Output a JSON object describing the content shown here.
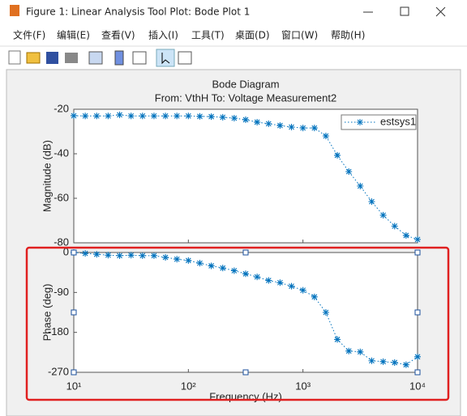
{
  "window": {
    "title": "Figure 1: Linear Analysis Tool Plot: Bode Plot 1",
    "menu": [
      "文件(F)",
      "编辑(E)",
      "查看(V)",
      "插入(I)",
      "工具(T)",
      "桌面(D)",
      "窗口(W)",
      "帮助(H)"
    ]
  },
  "chart_data": [
    {
      "type": "line",
      "title": "Bode Diagram",
      "subtitle": "From: VthH  To: Voltage Measurement2",
      "ylabel": "Magnitude (dB)",
      "xscale": "log",
      "show_xtick_labels": false,
      "x": [
        10,
        12.59,
        15.85,
        19.95,
        25.12,
        31.62,
        39.81,
        50.12,
        63.1,
        79.43,
        100,
        125.9,
        158.5,
        199.5,
        251.2,
        316.2,
        398.1,
        501.2,
        631,
        794.3,
        1000,
        1259,
        1585,
        1995,
        2512,
        3162,
        3981,
        5012,
        6310,
        7943,
        10000
      ],
      "xlim": [
        10,
        10000
      ],
      "xticks": [
        10,
        100,
        1000,
        10000
      ],
      "ylim": [
        -80,
        -20
      ],
      "yticks": [
        -20,
        -40,
        -60,
        -80
      ],
      "legend": "upper right",
      "series": [
        {
          "name": "estsys1",
          "color": "#0072bd",
          "values": [
            -22.9,
            -23,
            -23,
            -23,
            -22.5,
            -23,
            -23,
            -23,
            -23,
            -23,
            -23,
            -23.2,
            -23.3,
            -23.6,
            -24,
            -24.7,
            -25.8,
            -26.5,
            -27.3,
            -28,
            -28.4,
            -28.4,
            -32,
            -40.7,
            -48,
            -54.5,
            -61.5,
            -67.6,
            -72.5,
            -76.7,
            -78.5
          ]
        }
      ]
    },
    {
      "type": "line",
      "ylabel": "Phase (deg)",
      "xlabel": "Frequency  (Hz)",
      "xscale": "log",
      "show_xtick_labels": true,
      "x": [
        10,
        12.59,
        15.85,
        19.95,
        25.12,
        31.62,
        39.81,
        50.12,
        63.1,
        79.43,
        100,
        125.9,
        158.5,
        199.5,
        251.2,
        316.2,
        398.1,
        501.2,
        631,
        794.3,
        1000,
        1259,
        1585,
        1995,
        2512,
        3162,
        3981,
        5012,
        6310,
        7943,
        10000
      ],
      "xlim": [
        10,
        10000
      ],
      "xticks": [
        {
          "value": 10,
          "label": "10¹"
        },
        {
          "value": 100,
          "label": "10²"
        },
        {
          "value": 1000,
          "label": "10³"
        },
        {
          "value": 10000,
          "label": "10⁴"
        }
      ],
      "ylim": [
        -270,
        0
      ],
      "yticks": [
        0,
        -90,
        -180,
        -270
      ],
      "series": [
        {
          "color": "#0072bd",
          "values": [
            0,
            -2,
            -4,
            -6,
            -7,
            -6,
            -7,
            -7,
            -11,
            -15,
            -18,
            -24,
            -30,
            -35,
            -41,
            -48,
            -55,
            -63,
            -68,
            -76,
            -85,
            -100,
            -135,
            -196,
            -222,
            -224,
            -244,
            -246,
            -248,
            -253,
            -235
          ]
        }
      ]
    }
  ]
}
